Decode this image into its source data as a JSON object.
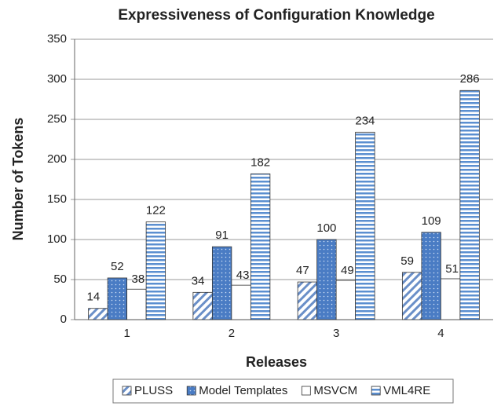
{
  "chart_data": {
    "type": "bar",
    "title": "Expressiveness of Configuration Knowledge",
    "x_label": "Releases",
    "y_label": "Number of Tokens",
    "categories": [
      "1",
      "2",
      "3",
      "4"
    ],
    "series": [
      {
        "name": "PLUSS",
        "color": "#6a8fc8",
        "values": [
          14,
          34,
          47,
          59
        ]
      },
      {
        "name": "Model Templates",
        "color": "#4a7cc4",
        "values": [
          52,
          91,
          100,
          109
        ]
      },
      {
        "name": "MSVCM",
        "color": "#ffffff",
        "values": [
          38,
          43,
          49,
          51
        ]
      },
      {
        "name": "VML4RE",
        "color": "#5b8fd0",
        "values": [
          122,
          182,
          234,
          286
        ]
      }
    ],
    "ylim": [
      0,
      350
    ],
    "yticks": [
      0,
      50,
      100,
      150,
      200,
      250,
      300,
      350
    ],
    "grid": true
  }
}
